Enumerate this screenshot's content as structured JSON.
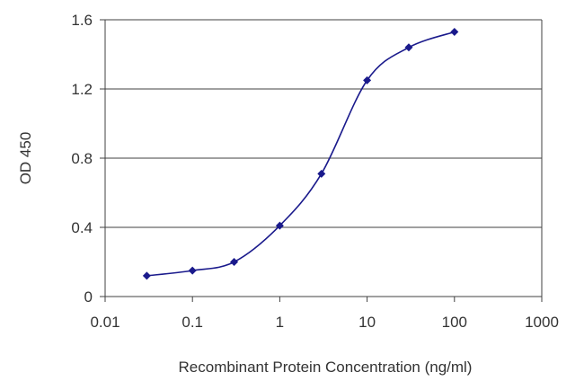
{
  "chart_data": {
    "type": "line",
    "title": "",
    "xlabel": "Recombinant Protein Concentration (ng/ml)",
    "ylabel": "OD 450",
    "x_scale": "log",
    "xlim": [
      0.01,
      1000
    ],
    "ylim": [
      0,
      1.6
    ],
    "x_ticks": [
      0.01,
      0.1,
      1,
      10,
      100,
      1000
    ],
    "x_tick_labels": [
      "0.01",
      "0.1",
      "1",
      "10",
      "100",
      "1000"
    ],
    "y_ticks": [
      0,
      0.4,
      0.8,
      1.2,
      1.6
    ],
    "y_tick_labels": [
      "0",
      "0.4",
      "0.8",
      "1.2",
      "1.6"
    ],
    "grid": "horizontal",
    "series": [
      {
        "x": [
          0.03,
          0.1,
          0.3,
          1,
          3,
          10,
          30,
          100
        ],
        "y": [
          0.12,
          0.15,
          0.2,
          0.41,
          0.71,
          1.25,
          1.44,
          1.53
        ]
      }
    ],
    "colors": {
      "line": "#1a1a8c",
      "marker": "#1a1a8c",
      "grid": "#404040",
      "axis": "#404040"
    }
  }
}
